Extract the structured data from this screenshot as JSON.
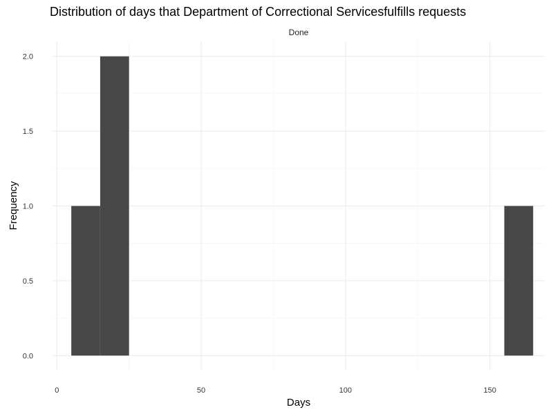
{
  "chart_data": {
    "type": "bar",
    "title": "Distribution of days that Department of Correctional Servicesfulfills requests",
    "facet_label": "Done",
    "xlabel": "Days",
    "ylabel": "Frequency",
    "xlim": [
      -1.5,
      169
    ],
    "ylim": [
      -0.1,
      2.1
    ],
    "x_ticks": [
      0,
      50,
      100,
      150
    ],
    "x_tick_labels": [
      "0",
      "50",
      "100",
      "150"
    ],
    "y_ticks": [
      0,
      0.5,
      1,
      1.5,
      2
    ],
    "y_tick_labels": [
      "0.0",
      "0.5",
      "1.0",
      "1.5",
      "2.0"
    ],
    "grid": true,
    "bin_width": 10,
    "bins": [
      {
        "start": 5,
        "end": 15,
        "count": 1
      },
      {
        "start": 15,
        "end": 25,
        "count": 2
      },
      {
        "start": 155,
        "end": 165,
        "count": 1
      }
    ],
    "bar_color": "#474747"
  }
}
